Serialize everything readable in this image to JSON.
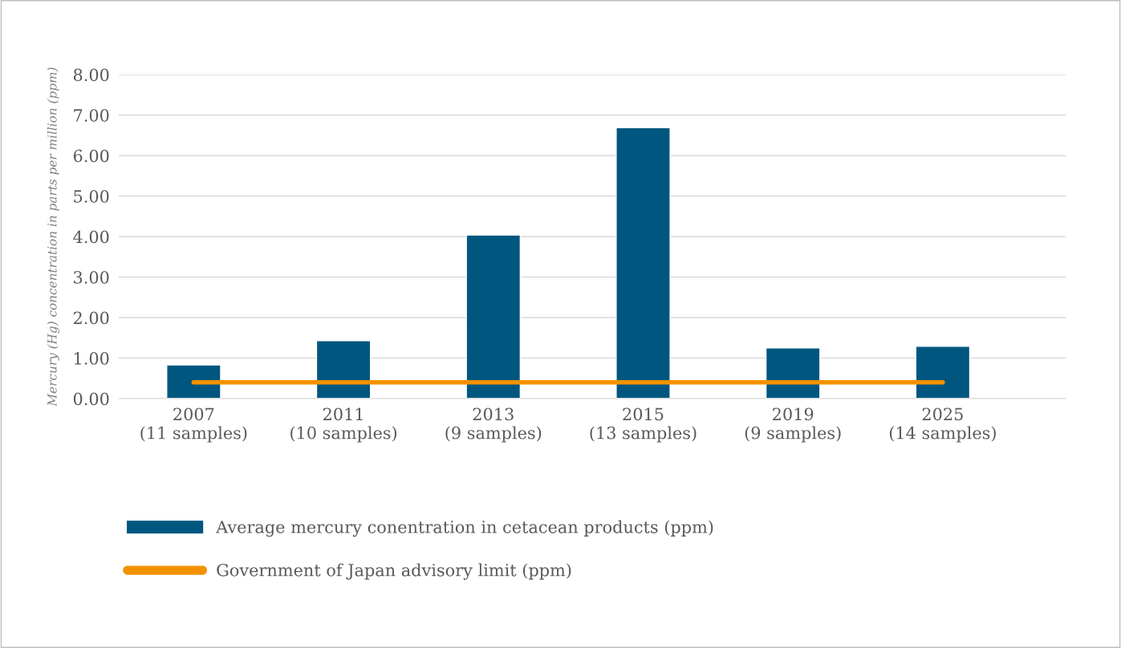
{
  "chart_data": {
    "type": "bar",
    "ylabel": "Mercury (Hg) concentration in parts per million (ppm)",
    "categories": [
      "2007\n(11 samples)",
      "2011\n(10 samples)",
      "2013\n(9 samples)",
      "2015\n(13 samples)",
      "2019\n(9 samples)",
      "2025\n(14 samples)"
    ],
    "series": [
      {
        "name": "Average mercury conentration in cetacean products (ppm)",
        "color": "#00567f",
        "values": [
          0.83,
          1.43,
          4.04,
          6.69,
          1.25,
          1.29
        ]
      },
      {
        "name": "Government of Japan advisory limit (ppm)",
        "type": "line",
        "color": "#f39200",
        "values": [
          0.4,
          0.4,
          0.4,
          0.4,
          0.4,
          0.4
        ]
      }
    ],
    "ylim": [
      0,
      8
    ],
    "yticks": [
      {
        "value": 0,
        "label": "0.00"
      },
      {
        "value": 1,
        "label": "1.00"
      },
      {
        "value": 2,
        "label": "2.00"
      },
      {
        "value": 3,
        "label": "3.00"
      },
      {
        "value": 4,
        "label": "4.00"
      },
      {
        "value": 5,
        "label": "5.00"
      },
      {
        "value": 6,
        "label": "6.00"
      },
      {
        "value": 7,
        "label": "7.00"
      },
      {
        "value": 8,
        "label": "8.00"
      }
    ],
    "grid": "y",
    "legend": "bottom"
  }
}
